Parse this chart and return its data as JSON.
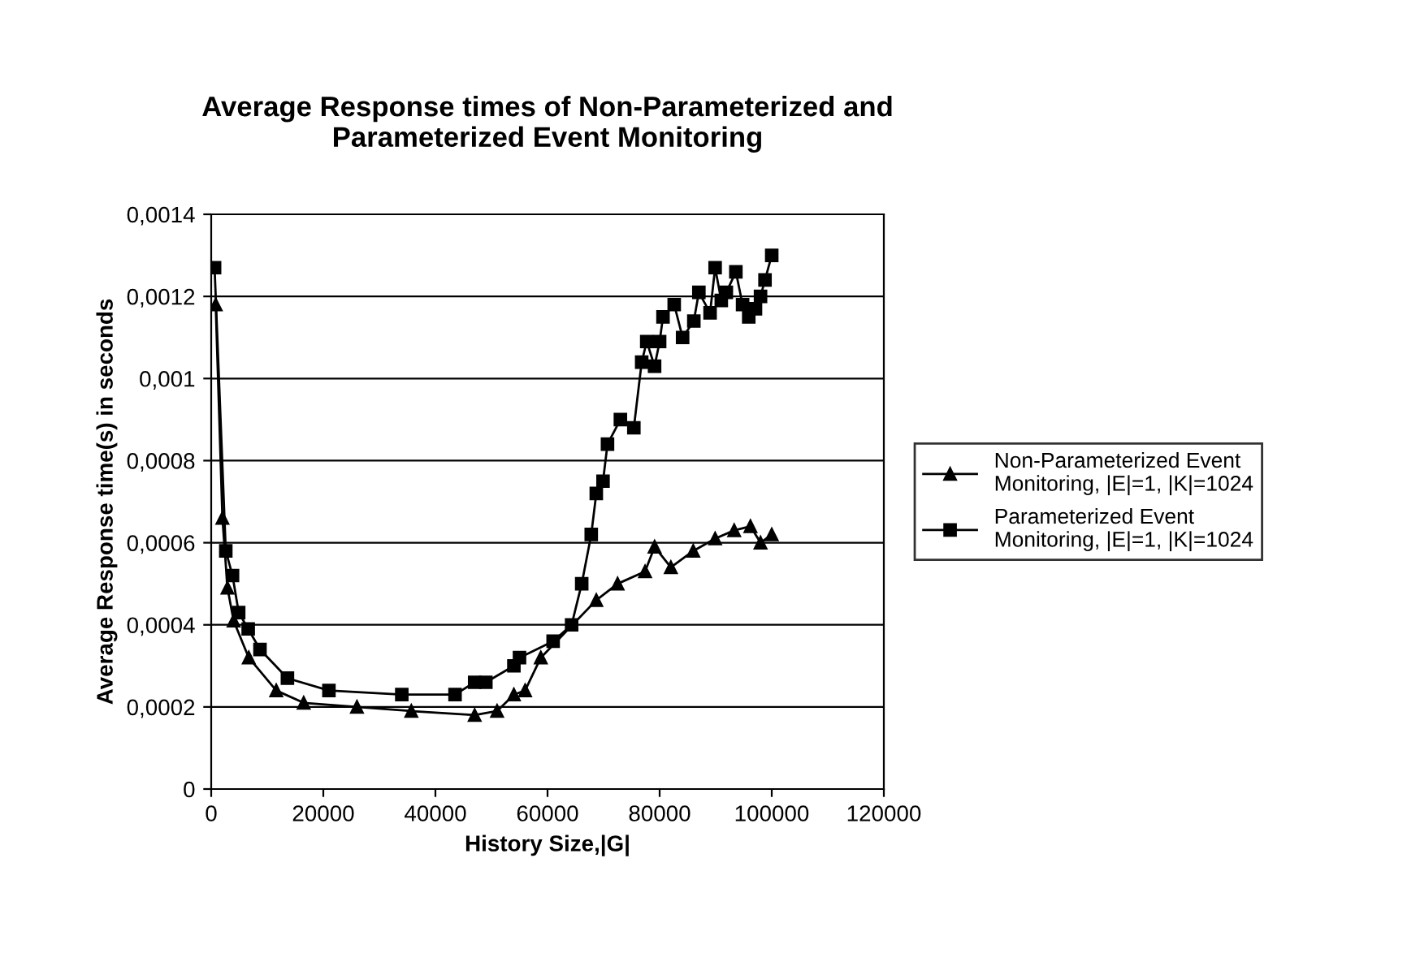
{
  "chart_data": {
    "type": "line",
    "title": "Average Response times of Non-Parameterized and\nParameterized Event Monitoring",
    "xlabel": "History Size,|G|",
    "ylabel": "Average Response time(s) in seconds",
    "xlim": [
      0,
      120000
    ],
    "xticks": [
      0,
      20000,
      40000,
      60000,
      80000,
      100000,
      120000
    ],
    "ylim": [
      0,
      0.0014
    ],
    "yticks": [
      {
        "value": 0,
        "label": "0"
      },
      {
        "value": 0.0002,
        "label": "0,0002"
      },
      {
        "value": 0.0004,
        "label": "0,0004"
      },
      {
        "value": 0.0006,
        "label": "0,0006"
      },
      {
        "value": 0.0008,
        "label": "0,0008"
      },
      {
        "value": 0.001,
        "label": "0,001"
      },
      {
        "value": 0.0012,
        "label": "0,0012"
      },
      {
        "value": 0.0014,
        "label": "0,0014"
      }
    ],
    "grid": "y",
    "legend": "right",
    "line_style": "solid",
    "series": [
      {
        "name": "Non-Parameterized Event Monitoring, |E|=1, |K|=1024",
        "color": "#000000",
        "marker": "triangle",
        "x": [
          800,
          2000,
          2900,
          4000,
          6700,
          11600,
          16500,
          26000,
          35700,
          47000,
          51000,
          54000,
          56000,
          58800,
          68700,
          72500,
          77400,
          79100,
          82000,
          86000,
          89900,
          93300,
          96200,
          98000,
          100000
        ],
        "values": [
          0.00118,
          0.00066,
          0.00049,
          0.00041,
          0.00032,
          0.00024,
          0.00021,
          0.0002,
          0.00019,
          0.00018,
          0.00019,
          0.00023,
          0.00024,
          0.00032,
          0.00046,
          0.0005,
          0.00053,
          0.00059,
          0.00054,
          0.00058,
          0.00061,
          0.00063,
          0.00064,
          0.0006,
          0.00062
        ]
      },
      {
        "name": "Parameterized Event Monitoring, |E|=1, |K|=1024",
        "color": "#000000",
        "marker": "square",
        "x": [
          600,
          2600,
          3800,
          4900,
          6600,
          8700,
          13600,
          21000,
          34000,
          43500,
          47000,
          49000,
          54000,
          55000,
          61000,
          64300,
          66100,
          67800,
          68700,
          69900,
          70700,
          73000,
          75400,
          76800,
          77700,
          79100,
          80000,
          80600,
          82600,
          84100,
          86100,
          87000,
          89000,
          89900,
          91000,
          91900,
          93600,
          94800,
          95900,
          97100,
          98000,
          98800,
          100000
        ],
        "values": [
          0.00127,
          0.00058,
          0.00052,
          0.00043,
          0.00039,
          0.00034,
          0.00027,
          0.00024,
          0.00023,
          0.00023,
          0.00026,
          0.00026,
          0.0003,
          0.00032,
          0.00036,
          0.0004,
          0.0005,
          0.00062,
          0.00072,
          0.00075,
          0.00084,
          0.0009,
          0.00088,
          0.00104,
          0.00109,
          0.00103,
          0.00109,
          0.00115,
          0.00118,
          0.0011,
          0.00114,
          0.00121,
          0.00116,
          0.00127,
          0.00119,
          0.00121,
          0.00126,
          0.00118,
          0.00115,
          0.00117,
          0.0012,
          0.00124,
          0.0013
        ]
      }
    ]
  }
}
